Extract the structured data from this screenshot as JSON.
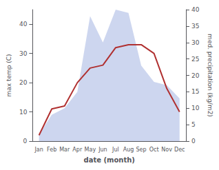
{
  "chart_data": {
    "type": "line",
    "categories": [
      "Jan",
      "Feb",
      "Mar",
      "Apr",
      "May",
      "Jun",
      "Jul",
      "Aug",
      "Sep",
      "Oct",
      "Nov",
      "Dec"
    ],
    "series": [
      {
        "type": "area",
        "axis": "y2",
        "color": "#b8c4e8",
        "values": [
          2,
          8,
          10,
          15,
          38,
          30,
          40,
          39,
          23,
          18,
          17,
          13
        ]
      },
      {
        "type": "line",
        "axis": "y",
        "color": "#b03030",
        "values": [
          2,
          11,
          12,
          20,
          25,
          26,
          32,
          33,
          33,
          30,
          18,
          10
        ]
      }
    ],
    "xlabel": "date (month)",
    "ylabel": "max temp (C)",
    "y2label": "med. precipitation (kg/m2)",
    "ylim": [
      0,
      45
    ],
    "yticks": [
      0,
      10,
      20,
      30,
      40
    ],
    "y2lim": [
      0,
      40
    ],
    "y2ticks": [
      0,
      5,
      10,
      15,
      20,
      25,
      30,
      35,
      40
    ],
    "grid": false,
    "legend": false
  }
}
